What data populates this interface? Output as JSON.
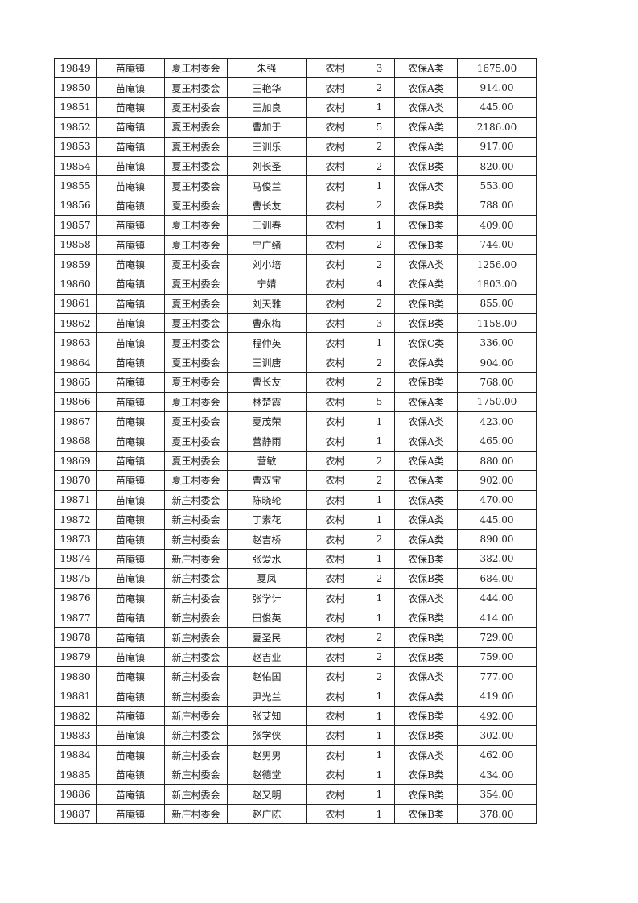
{
  "rows": [
    [
      "19849",
      "苗庵镇",
      "夏王村委会",
      "朱强",
      "农村",
      "3",
      "农保A类",
      "1675.00"
    ],
    [
      "19850",
      "苗庵镇",
      "夏王村委会",
      "王艳华",
      "农村",
      "2",
      "农保A类",
      "914.00"
    ],
    [
      "19851",
      "苗庵镇",
      "夏王村委会",
      "王加良",
      "农村",
      "1",
      "农保A类",
      "445.00"
    ],
    [
      "19852",
      "苗庵镇",
      "夏王村委会",
      "曹加于",
      "农村",
      "5",
      "农保A类",
      "2186.00"
    ],
    [
      "19853",
      "苗庵镇",
      "夏王村委会",
      "王训乐",
      "农村",
      "2",
      "农保A类",
      "917.00"
    ],
    [
      "19854",
      "苗庵镇",
      "夏王村委会",
      "刘长圣",
      "农村",
      "2",
      "农保B类",
      "820.00"
    ],
    [
      "19855",
      "苗庵镇",
      "夏王村委会",
      "马俊兰",
      "农村",
      "1",
      "农保A类",
      "553.00"
    ],
    [
      "19856",
      "苗庵镇",
      "夏王村委会",
      "曹长友",
      "农村",
      "2",
      "农保B类",
      "788.00"
    ],
    [
      "19857",
      "苗庵镇",
      "夏王村委会",
      "王训春",
      "农村",
      "1",
      "农保B类",
      "409.00"
    ],
    [
      "19858",
      "苗庵镇",
      "夏王村委会",
      "宁广绪",
      "农村",
      "2",
      "农保B类",
      "744.00"
    ],
    [
      "19859",
      "苗庵镇",
      "夏王村委会",
      "刘小培",
      "农村",
      "2",
      "农保A类",
      "1256.00"
    ],
    [
      "19860",
      "苗庵镇",
      "夏王村委会",
      "宁婧",
      "农村",
      "4",
      "农保A类",
      "1803.00"
    ],
    [
      "19861",
      "苗庵镇",
      "夏王村委会",
      "刘天雅",
      "农村",
      "2",
      "农保B类",
      "855.00"
    ],
    [
      "19862",
      "苗庵镇",
      "夏王村委会",
      "曹永梅",
      "农村",
      "3",
      "农保B类",
      "1158.00"
    ],
    [
      "19863",
      "苗庵镇",
      "夏王村委会",
      "程仲英",
      "农村",
      "1",
      "农保C类",
      "336.00"
    ],
    [
      "19864",
      "苗庵镇",
      "夏王村委会",
      "王训唐",
      "农村",
      "2",
      "农保A类",
      "904.00"
    ],
    [
      "19865",
      "苗庵镇",
      "夏王村委会",
      "曹长友",
      "农村",
      "2",
      "农保B类",
      "768.00"
    ],
    [
      "19866",
      "苗庵镇",
      "夏王村委会",
      "林楚霞",
      "农村",
      "5",
      "农保A类",
      "1750.00"
    ],
    [
      "19867",
      "苗庵镇",
      "夏王村委会",
      "夏茂荣",
      "农村",
      "1",
      "农保A类",
      "423.00"
    ],
    [
      "19868",
      "苗庵镇",
      "夏王村委会",
      "营静雨",
      "农村",
      "1",
      "农保A类",
      "465.00"
    ],
    [
      "19869",
      "苗庵镇",
      "夏王村委会",
      "营敏",
      "农村",
      "2",
      "农保A类",
      "880.00"
    ],
    [
      "19870",
      "苗庵镇",
      "夏王村委会",
      "曹双宝",
      "农村",
      "2",
      "农保A类",
      "902.00"
    ],
    [
      "19871",
      "苗庵镇",
      "新庄村委会",
      "陈晓轮",
      "农村",
      "1",
      "农保A类",
      "470.00"
    ],
    [
      "19872",
      "苗庵镇",
      "新庄村委会",
      "丁素花",
      "农村",
      "1",
      "农保A类",
      "445.00"
    ],
    [
      "19873",
      "苗庵镇",
      "新庄村委会",
      "赵吉桥",
      "农村",
      "2",
      "农保A类",
      "890.00"
    ],
    [
      "19874",
      "苗庵镇",
      "新庄村委会",
      "张爱水",
      "农村",
      "1",
      "农保B类",
      "382.00"
    ],
    [
      "19875",
      "苗庵镇",
      "新庄村委会",
      "夏凤",
      "农村",
      "2",
      "农保B类",
      "684.00"
    ],
    [
      "19876",
      "苗庵镇",
      "新庄村委会",
      "张学计",
      "农村",
      "1",
      "农保A类",
      "444.00"
    ],
    [
      "19877",
      "苗庵镇",
      "新庄村委会",
      "田俊英",
      "农村",
      "1",
      "农保B类",
      "414.00"
    ],
    [
      "19878",
      "苗庵镇",
      "新庄村委会",
      "夏圣民",
      "农村",
      "2",
      "农保B类",
      "729.00"
    ],
    [
      "19879",
      "苗庵镇",
      "新庄村委会",
      "赵吉业",
      "农村",
      "2",
      "农保B类",
      "759.00"
    ],
    [
      "19880",
      "苗庵镇",
      "新庄村委会",
      "赵佑国",
      "农村",
      "2",
      "农保A类",
      "777.00"
    ],
    [
      "19881",
      "苗庵镇",
      "新庄村委会",
      "尹光兰",
      "农村",
      "1",
      "农保A类",
      "419.00"
    ],
    [
      "19882",
      "苗庵镇",
      "新庄村委会",
      "张艾知",
      "农村",
      "1",
      "农保B类",
      "492.00"
    ],
    [
      "19883",
      "苗庵镇",
      "新庄村委会",
      "张学侠",
      "农村",
      "1",
      "农保B类",
      "302.00"
    ],
    [
      "19884",
      "苗庵镇",
      "新庄村委会",
      "赵男男",
      "农村",
      "1",
      "农保A类",
      "462.00"
    ],
    [
      "19885",
      "苗庵镇",
      "新庄村委会",
      "赵德堂",
      "农村",
      "1",
      "农保B类",
      "434.00"
    ],
    [
      "19886",
      "苗庵镇",
      "新庄村委会",
      "赵又明",
      "农村",
      "1",
      "农保B类",
      "354.00"
    ],
    [
      "19887",
      "苗庵镇",
      "新庄村委会",
      "赵广陈",
      "农村",
      "1",
      "农保B类",
      "378.00"
    ]
  ]
}
